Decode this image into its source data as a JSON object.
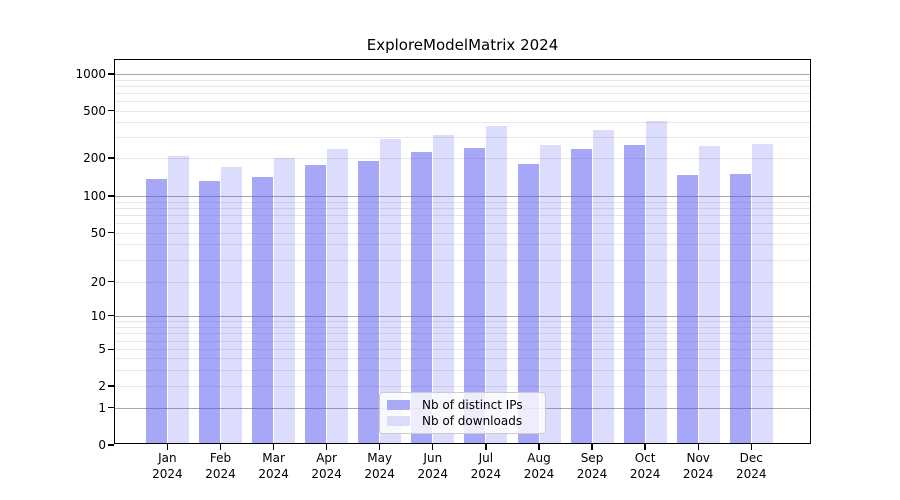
{
  "title": "ExploreModelMatrix 2024",
  "chart_data": {
    "type": "bar",
    "title": "ExploreModelMatrix 2024",
    "categories": [
      "Jan 2024",
      "Feb 2024",
      "Mar 2024",
      "Apr 2024",
      "May 2024",
      "Jun 2024",
      "Jul 2024",
      "Aug 2024",
      "Sep 2024",
      "Oct 2024",
      "Nov 2024",
      "Dec 2024"
    ],
    "series": [
      {
        "name": "Nb of distinct IPs",
        "color": "#a9a9f7",
        "fill": "rgba(80,80,240,0.5)",
        "values": [
          137,
          131,
          142,
          176,
          188,
          223,
          245,
          181,
          240,
          257,
          146,
          149
        ]
      },
      {
        "name": "Nb of downloads",
        "color": "#dcdcfa",
        "fill": "rgba(80,80,240,0.2)",
        "values": [
          210,
          170,
          200,
          240,
          290,
          310,
          370,
          257,
          343,
          410,
          252,
          262
        ]
      }
    ],
    "yscale": "symlog",
    "yticks": [
      0,
      1,
      2,
      5,
      10,
      20,
      50,
      100,
      200,
      500,
      1000
    ],
    "ylim": [
      0,
      1400
    ],
    "grid": true,
    "grid_major_values": [
      1,
      10,
      100,
      1000
    ],
    "grid_minor_values": [
      2,
      3,
      4,
      5,
      6,
      7,
      8,
      9,
      20,
      30,
      40,
      50,
      60,
      70,
      80,
      90,
      200,
      300,
      400,
      500,
      600,
      700,
      800,
      900
    ],
    "legend_position": "lower center",
    "xlabel": "",
    "ylabel": ""
  },
  "colors": {
    "bar_distinct_ips": "#a9a9f7",
    "bar_downloads": "#dcdcfa",
    "grid_major": "#a6a6a6",
    "grid_minor": "#e6e6e6",
    "axis": "#000000",
    "legend_border": "#cccccc"
  }
}
